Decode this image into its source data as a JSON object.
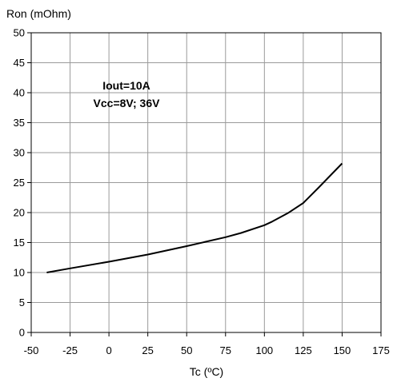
{
  "chart_data": {
    "type": "line",
    "title": "",
    "xlabel": "Tc (ºC)",
    "ylabel": "Ron (mOhm)",
    "xlim": [
      -50,
      175
    ],
    "ylim": [
      0,
      50
    ],
    "x_ticks": [
      -50,
      -25,
      0,
      25,
      50,
      75,
      100,
      125,
      150,
      175
    ],
    "y_ticks": [
      0,
      5,
      10,
      15,
      20,
      25,
      30,
      35,
      40,
      45,
      50
    ],
    "grid": true,
    "legend": "none",
    "annotations": [
      "Iout=10A",
      "Vcc=8V; 36V"
    ],
    "series": [
      {
        "color": "#000000",
        "x": [
          -40,
          -25,
          0,
          25,
          50,
          75,
          85,
          100,
          105,
          115,
          125,
          135,
          150
        ],
        "y": [
          10,
          10.7,
          11.8,
          13.0,
          14.4,
          15.9,
          16.6,
          17.9,
          18.5,
          19.9,
          21.6,
          24.2,
          28.2
        ]
      }
    ]
  }
}
